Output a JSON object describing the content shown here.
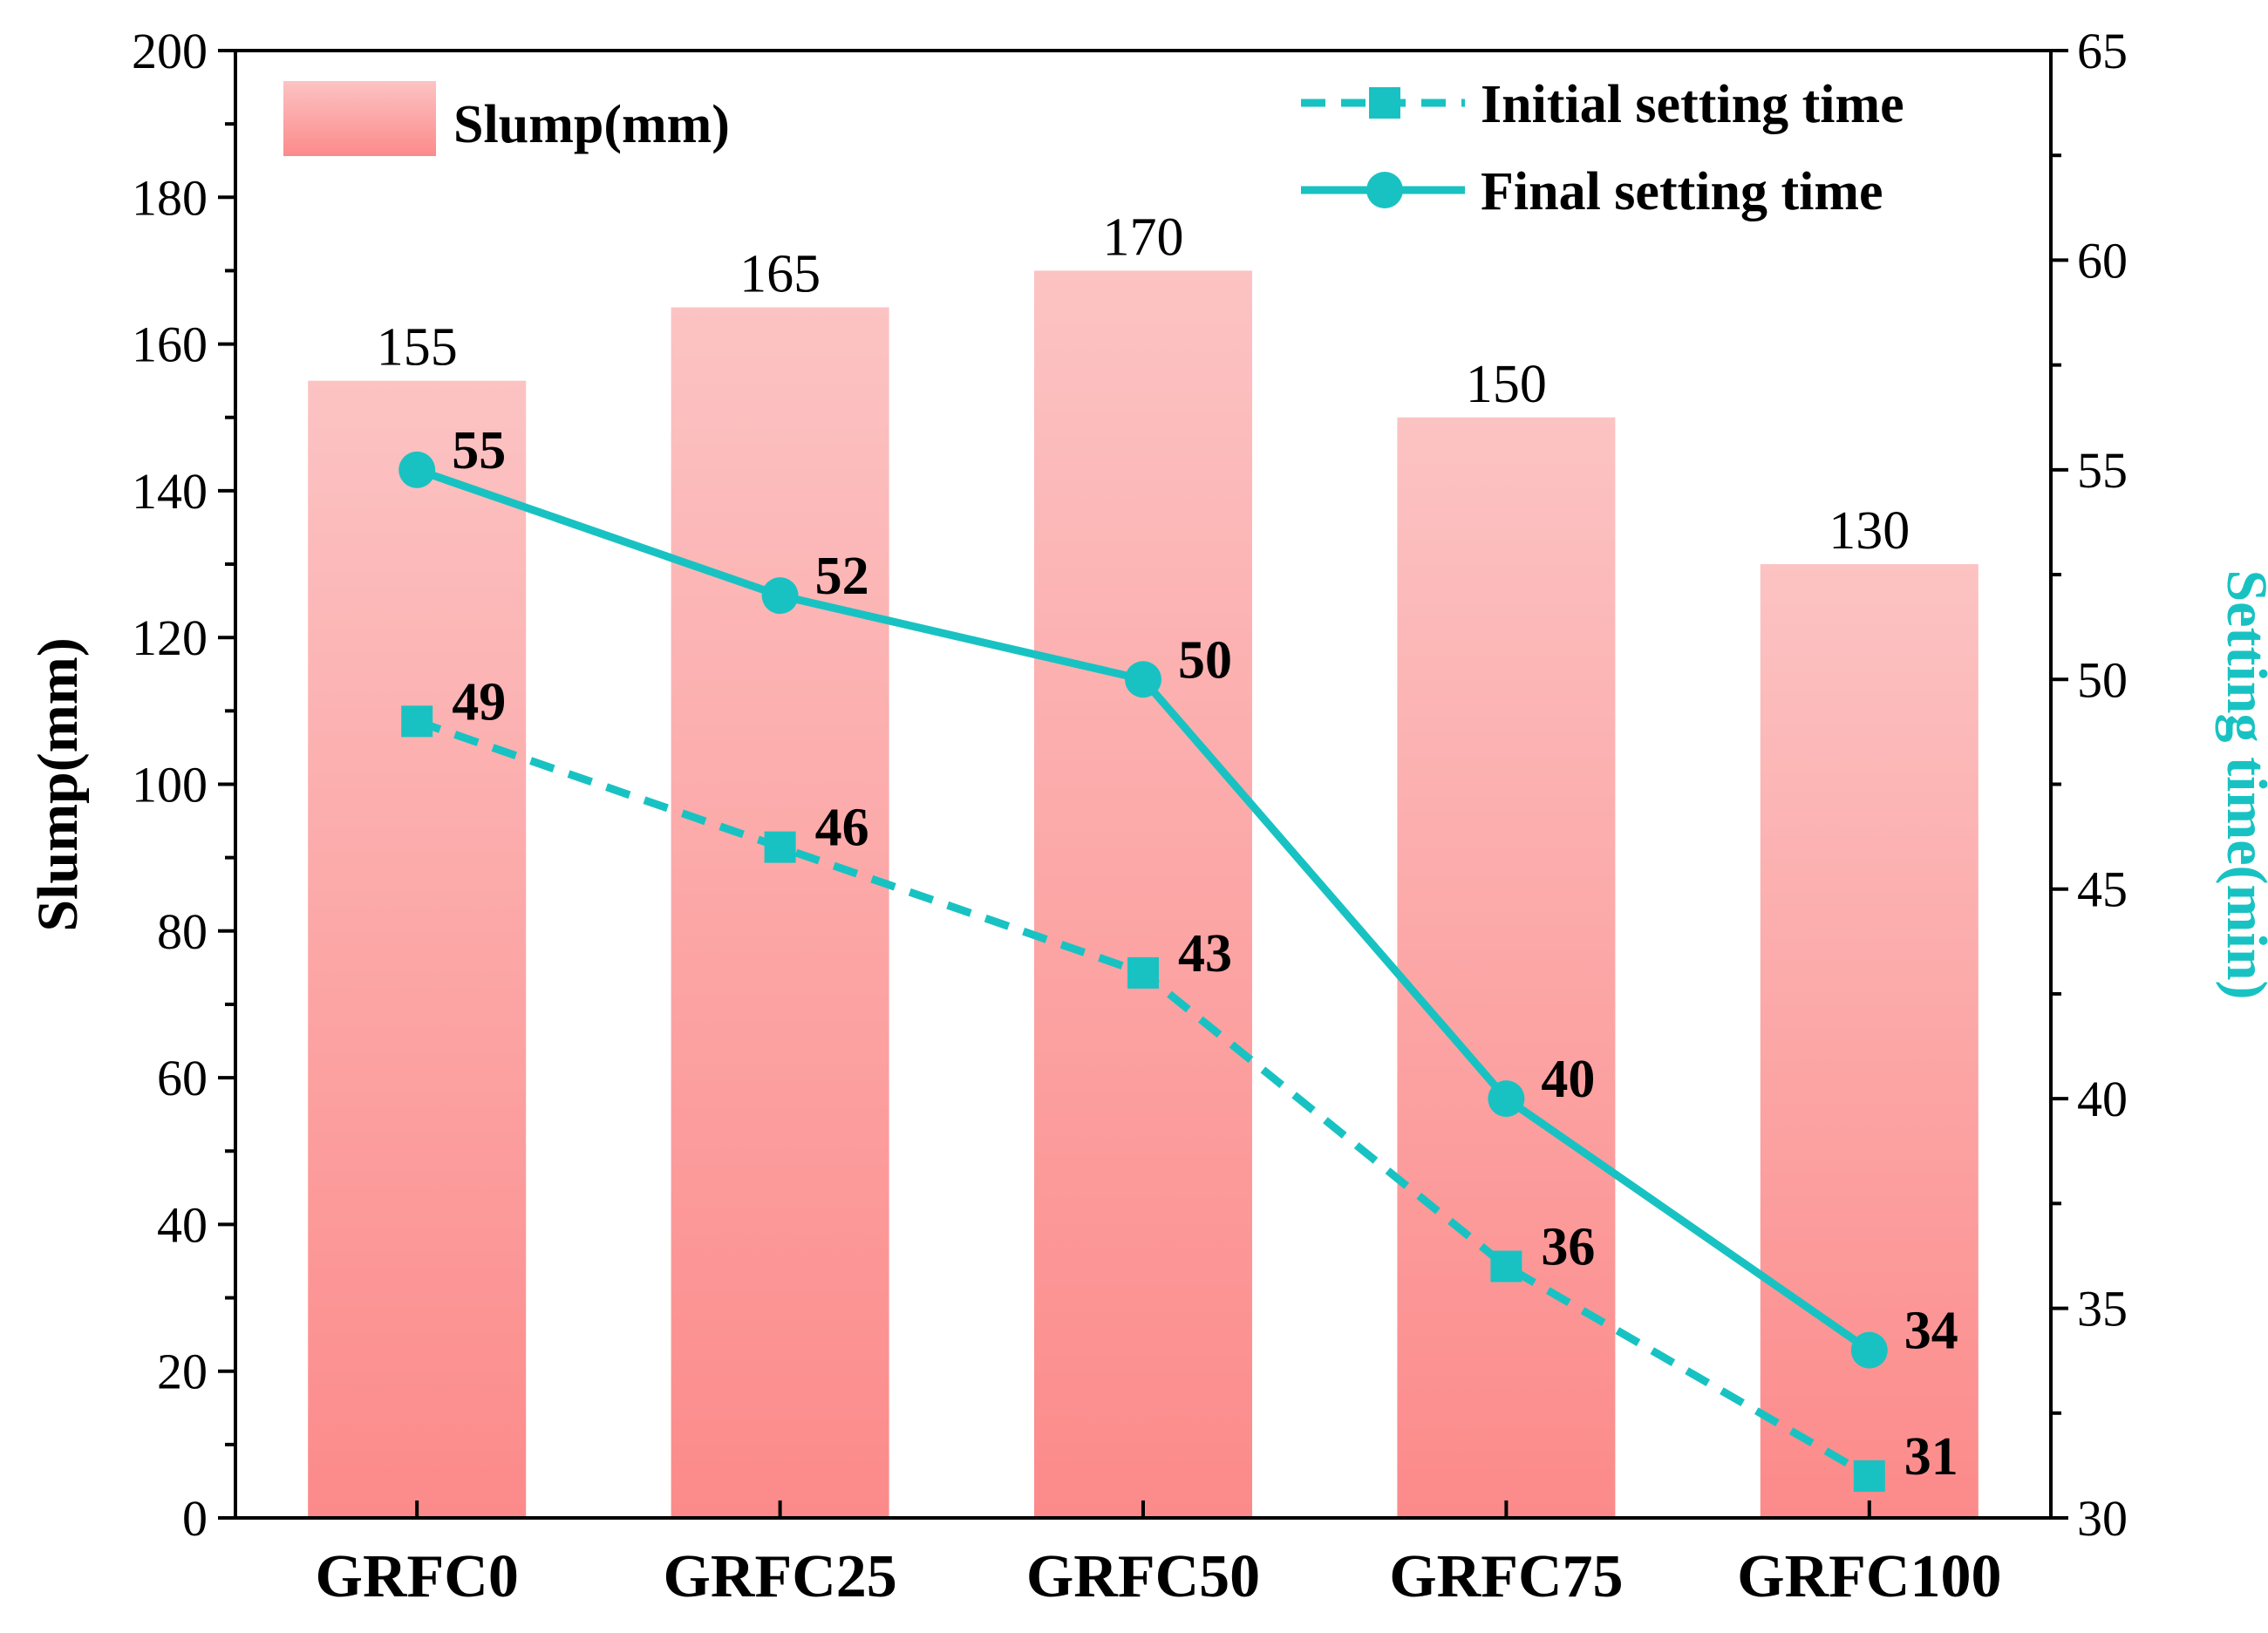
{
  "chart_data": {
    "type": "bar+line",
    "categories": [
      "GRFC0",
      "GRFC25",
      "GRFC50",
      "GRFC75",
      "GRFC100"
    ],
    "bars": {
      "name": "Slump(mm)",
      "values": [
        155,
        165,
        170,
        150,
        130
      ],
      "labels": [
        "155",
        "165",
        "170",
        "150",
        "130"
      ],
      "color_top": "#fcc3c3",
      "color_bottom": "#fc8a8a"
    },
    "series": [
      {
        "name": "Initial setting time",
        "values": [
          49,
          46,
          43,
          36,
          31
        ],
        "labels": [
          "49",
          "46",
          "43",
          "36",
          "31"
        ],
        "style": "dashed",
        "marker": "square",
        "color": "#19c2c2"
      },
      {
        "name": "Final setting time",
        "values": [
          55,
          52,
          50,
          40,
          34
        ],
        "labels": [
          "55",
          "52",
          "50",
          "40",
          "34"
        ],
        "style": "solid",
        "marker": "circle",
        "color": "#19c2c2"
      }
    ],
    "y_left": {
      "label": "Slump(mm)",
      "range": [
        0,
        200
      ],
      "ticks": [
        "0",
        "20",
        "40",
        "60",
        "80",
        "100",
        "120",
        "140",
        "160",
        "180",
        "200"
      ],
      "color": "#000000"
    },
    "y_right": {
      "label": "Setting time(min)",
      "range": [
        30,
        65
      ],
      "ticks": [
        "30",
        "35",
        "40",
        "45",
        "50",
        "55",
        "60",
        "65"
      ],
      "color": "#19c2c2"
    },
    "legend": {
      "bars_position": "top-left",
      "lines_position": "top-right"
    }
  }
}
